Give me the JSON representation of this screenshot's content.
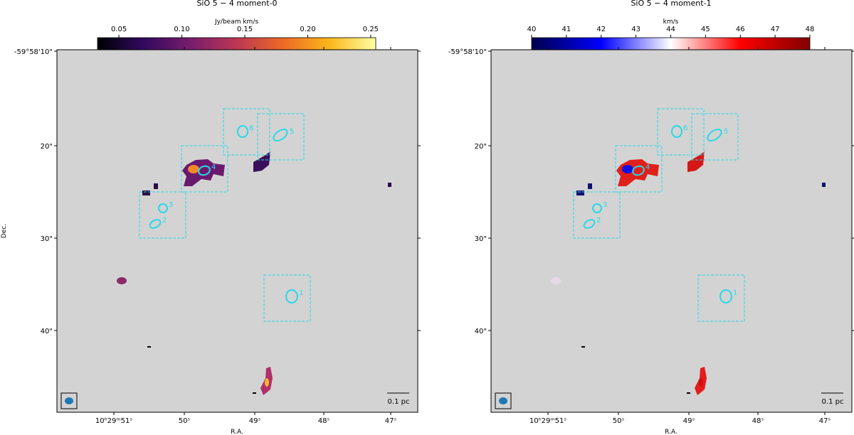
{
  "figure": {
    "panels": [
      {
        "title": "SiO 5 − 4 moment-0",
        "colorbar": {
          "label": "Jy/beam km/s",
          "lim": [
            0.033,
            0.254
          ],
          "ticks": [
            0.05,
            {
              "value": 0.1,
              "label": "0.10"
            },
            0.15,
            {
              "value": 0.2,
              "label": "0.20"
            },
            0.25
          ],
          "colormap": [
            "#000004",
            "#320a5e",
            "#781c6d",
            "#bc3754",
            "#ed6925",
            "#fbb61a",
            "#fcffa4"
          ]
        },
        "ra_ticks": [
          "10ʰ29ᵐ51ˢ",
          "50ˢ",
          "49ˢ",
          "48ˢ",
          "47ˢ"
        ],
        "dec_ticks": [
          "-59°58'10\"",
          "20\"",
          "30\"",
          "40\""
        ],
        "xlabel": "R.A.",
        "ylabel": "Dec.",
        "regions": [
          "1",
          "2",
          "3",
          "4",
          "5",
          "6"
        ],
        "scalebar": "0.1 pc"
      },
      {
        "title": "SiO 5 − 4 moment-1",
        "colorbar": {
          "label": "km/s",
          "lim": [
            40,
            48
          ],
          "ticks": [
            40,
            41,
            42,
            43,
            44,
            45,
            46,
            47,
            48
          ],
          "colormap": [
            "#00004c",
            "#0000ff",
            "#ffffff",
            "#ff0000",
            "#800000"
          ]
        },
        "ra_ticks": [
          "10ʰ29ᵐ51ˢ",
          "50ˢ",
          "49ˢ",
          "48ˢ",
          "47ˢ"
        ],
        "dec_ticks": [
          "-59°58'10\"",
          "20\"",
          "30\"",
          "40\""
        ],
        "xlabel": "R.A.",
        "regions": [
          "1",
          "2",
          "3",
          "4",
          "5",
          "6"
        ],
        "scalebar": "0.1 pc"
      }
    ]
  }
}
